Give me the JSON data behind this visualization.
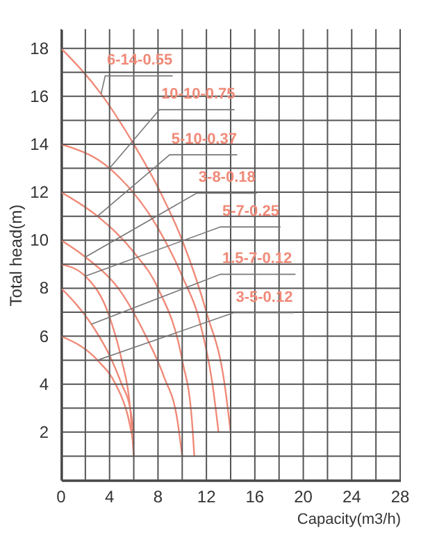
{
  "chart_data": {
    "type": "line",
    "xlabel": "Capacity(m3/h)",
    "ylabel": "Total head(m)",
    "xlim": [
      0,
      28
    ],
    "ylim": [
      0,
      18.8
    ],
    "xticks": [
      0,
      {
        "value": 2,
        "label": null
      },
      4,
      {
        "value": 6,
        "label": null
      },
      8,
      {
        "value": 10,
        "label": null
      },
      12,
      {
        "value": 14,
        "label": null
      },
      16,
      {
        "value": 18,
        "label": null
      },
      20,
      {
        "value": 22,
        "label": null
      },
      24,
      {
        "value": 26,
        "label": null
      },
      28
    ],
    "yticks": [
      {
        "value": 0,
        "label": null
      },
      {
        "value": 1,
        "label": null
      },
      2,
      {
        "value": 3,
        "label": null
      },
      4,
      {
        "value": 5,
        "label": null
      },
      6,
      {
        "value": 7,
        "label": null
      },
      8,
      {
        "value": 9,
        "label": null
      },
      10,
      {
        "value": 11,
        "label": null
      },
      12,
      {
        "value": 13,
        "label": null
      },
      14,
      {
        "value": 15,
        "label": null
      },
      16,
      {
        "value": 17,
        "label": null
      },
      18
    ],
    "grid": true,
    "marker": "none",
    "series": [
      {
        "name": "6-14-0.55",
        "color": "#f08a78",
        "x": [
          0,
          3.3,
          6,
          8,
          10,
          12,
          13.5,
          14
        ],
        "values": [
          18,
          16.1,
          14,
          12.2,
          10,
          7,
          4,
          2
        ]
      },
      {
        "name": "10-10-0.75",
        "color": "#f08a78",
        "x": [
          0,
          4,
          8,
          10,
          11.5,
          12.5,
          13
        ],
        "values": [
          14,
          13,
          10.5,
          8.5,
          6.5,
          4,
          2
        ]
      },
      {
        "name": "5-10-0.37",
        "color": "#f08a78",
        "x": [
          0,
          3,
          6,
          8,
          10,
          10.8,
          11
        ],
        "values": [
          12,
          11,
          9.5,
          8,
          5,
          2.5,
          1
        ]
      },
      {
        "name": "3-8-0.18",
        "color": "#f08a78",
        "x": [
          0,
          2,
          5,
          7,
          8.5,
          9.6,
          10
        ],
        "values": [
          10,
          9.3,
          7.8,
          6,
          4.3,
          2.5,
          1
        ]
      },
      {
        "name": "5-7-0.25",
        "color": "#f08a78",
        "x": [
          0,
          2,
          4,
          5,
          5.7,
          6
        ],
        "values": [
          9,
          8.5,
          6.8,
          5,
          3,
          1
        ]
      },
      {
        "name": "1.5-7-0.12",
        "color": "#f08a78",
        "x": [
          0,
          2.5,
          4,
          5,
          5.7,
          6
        ],
        "values": [
          8,
          6.5,
          5.2,
          4,
          3,
          2
        ]
      },
      {
        "name": "3-5-0.12",
        "color": "#f08a78",
        "x": [
          0,
          3,
          4.5,
          5.5,
          6
        ],
        "values": [
          6,
          5,
          4,
          2.7,
          1.5
        ]
      }
    ]
  }
}
